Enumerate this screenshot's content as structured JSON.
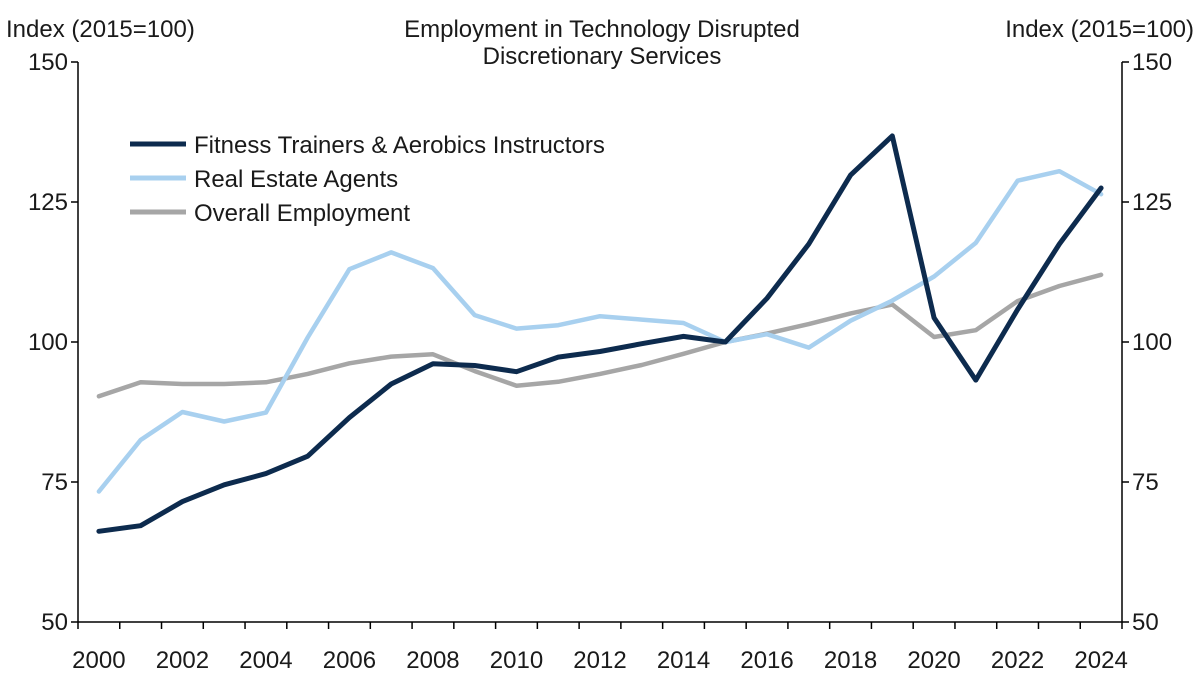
{
  "chart_data": {
    "type": "line",
    "title_lines": [
      "Employment in Technology  Disrupted",
      "Discretionary Services"
    ],
    "y_left_label": "Index (2015=100)",
    "y_right_label": "Index (2015=100)",
    "ylim": [
      50,
      150
    ],
    "yticks": [
      50,
      75,
      100,
      125,
      150
    ],
    "xlim": [
      2000,
      2025
    ],
    "xticks": [
      2000,
      2002,
      2004,
      2006,
      2008,
      2010,
      2012,
      2014,
      2016,
      2018,
      2020,
      2022,
      2024
    ],
    "grid": false,
    "legend_position": "top-left",
    "series": [
      {
        "name": "Fitness Trainers & Aerobics Instructors",
        "color": "#0d2b4e",
        "x": [
          2000,
          2001,
          2002,
          2003,
          2004,
          2005,
          2006,
          2007,
          2008,
          2009,
          2010,
          2011,
          2012,
          2013,
          2014,
          2015,
          2016,
          2017,
          2018,
          2019,
          2020,
          2021,
          2022,
          2023,
          2024
        ],
        "values": [
          66.2,
          67.2,
          71.5,
          74.5,
          76.5,
          79.6,
          86.5,
          92.5,
          96.1,
          95.8,
          94.7,
          97.3,
          98.3,
          99.7,
          101.0,
          100.0,
          107.8,
          117.5,
          129.8,
          136.8,
          104.3,
          93.2,
          105.8,
          117.5,
          127.5
        ]
      },
      {
        "name": "Real Estate Agents",
        "color": "#a8d0ef",
        "x": [
          2000,
          2001,
          2002,
          2003,
          2004,
          2005,
          2006,
          2007,
          2008,
          2009,
          2010,
          2011,
          2012,
          2013,
          2014,
          2015,
          2016,
          2017,
          2018,
          2019,
          2020,
          2021,
          2022,
          2023,
          2024
        ],
        "values": [
          73.3,
          82.5,
          87.5,
          85.8,
          87.4,
          100.8,
          113.0,
          116.0,
          113.2,
          104.8,
          102.4,
          103.0,
          104.6,
          104.0,
          103.4,
          100.0,
          101.4,
          99.0,
          103.8,
          107.4,
          111.7,
          117.7,
          128.8,
          130.5,
          126.4
        ]
      },
      {
        "name": "Overall Employment",
        "color": "#a6a6a6",
        "x": [
          2000,
          2001,
          2002,
          2003,
          2004,
          2005,
          2006,
          2007,
          2008,
          2009,
          2010,
          2011,
          2012,
          2013,
          2014,
          2015,
          2016,
          2017,
          2018,
          2019,
          2020,
          2021,
          2022,
          2023,
          2024
        ],
        "values": [
          90.3,
          92.8,
          92.5,
          92.5,
          92.8,
          94.3,
          96.2,
          97.4,
          97.8,
          94.8,
          92.2,
          92.9,
          94.3,
          95.9,
          97.9,
          100.0,
          101.5,
          103.2,
          105.1,
          106.7,
          100.9,
          102.1,
          107.3,
          110.0,
          112.0
        ]
      }
    ]
  }
}
